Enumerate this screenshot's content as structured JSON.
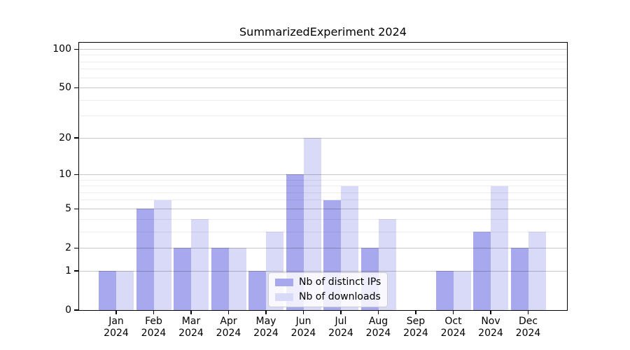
{
  "chart_data": {
    "type": "bar",
    "title": "SummarizedExperiment 2024",
    "categories": [
      "Jan\n2024",
      "Feb\n2024",
      "Mar\n2024",
      "Apr\n2024",
      "May\n2024",
      "Jun\n2024",
      "Jul\n2024",
      "Aug\n2024",
      "Sep\n2024",
      "Oct\n2024",
      "Nov\n2024",
      "Dec\n2024"
    ],
    "series": [
      {
        "name": "Nb of distinct IPs",
        "color": "#a8a8ef",
        "values": [
          1,
          5,
          2,
          2,
          1,
          10,
          6,
          2,
          0,
          1,
          3,
          2
        ]
      },
      {
        "name": "Nb of downloads",
        "color": "#d9d9f8",
        "values": [
          1,
          6,
          4,
          2,
          3,
          20,
          8,
          4,
          0,
          1,
          8,
          3
        ]
      }
    ],
    "xlabel": "",
    "ylabel": "",
    "yscale": "log1p",
    "ylim": [
      0,
      113
    ],
    "y_ticks": [
      0,
      1,
      2,
      5,
      10,
      20,
      50,
      100
    ],
    "y_minor_gridlines": [
      3,
      4,
      6,
      7,
      8,
      9,
      30,
      40,
      60,
      70,
      80,
      90
    ],
    "grid": true,
    "legend_position": "lower center"
  },
  "colors": {
    "bar_distinct_ips": "#a8a8ef",
    "bar_downloads": "#d9d9f8",
    "grid_major": "rgba(0,0,0,0.22)",
    "grid_minor": "rgba(0,0,0,0.07)",
    "spine": "#000000",
    "legend_border": "#cccccc",
    "legend_background": "rgba(255,255,255,0.8)"
  }
}
